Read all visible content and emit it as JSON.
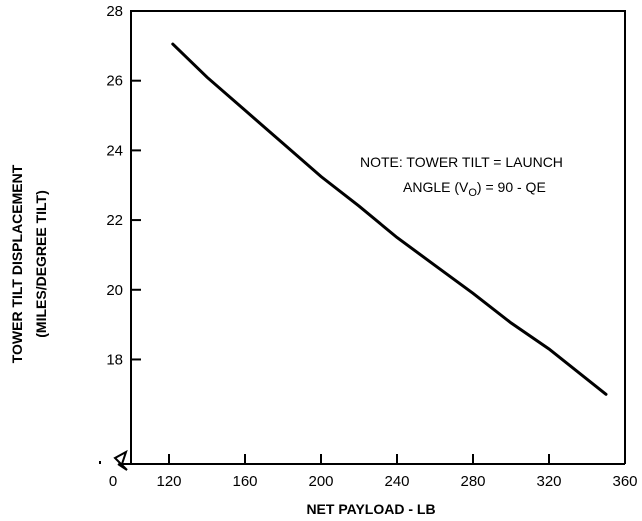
{
  "chart_data": {
    "type": "line",
    "xlabel": "NET PAYLOAD - LB",
    "ylabel_lines": [
      "TOWER TILT DISPLACEMENT",
      "(MILES/DEGREE TILT)"
    ],
    "x_ticks": [
      0,
      120,
      160,
      200,
      240,
      280,
      320,
      360
    ],
    "y_ticks": [
      18,
      20,
      22,
      24,
      26,
      28
    ],
    "xlim": [
      100,
      360
    ],
    "ylim": [
      15,
      28
    ],
    "axis_break": true,
    "grid": false,
    "annotation": {
      "line1": "NOTE: TOWER TILT = LAUNCH",
      "line2_prefix": "ANGLE (V",
      "line2_sub": "O",
      "line2_suffix": ") = 90 - QE"
    },
    "series": [
      {
        "x": [
          122,
          140,
          160,
          180,
          200,
          220,
          240,
          260,
          280,
          300,
          320,
          350
        ],
        "y": [
          27.05,
          26.1,
          25.15,
          24.2,
          23.25,
          22.4,
          21.5,
          20.7,
          19.9,
          19.05,
          18.3,
          17.0
        ]
      }
    ]
  }
}
